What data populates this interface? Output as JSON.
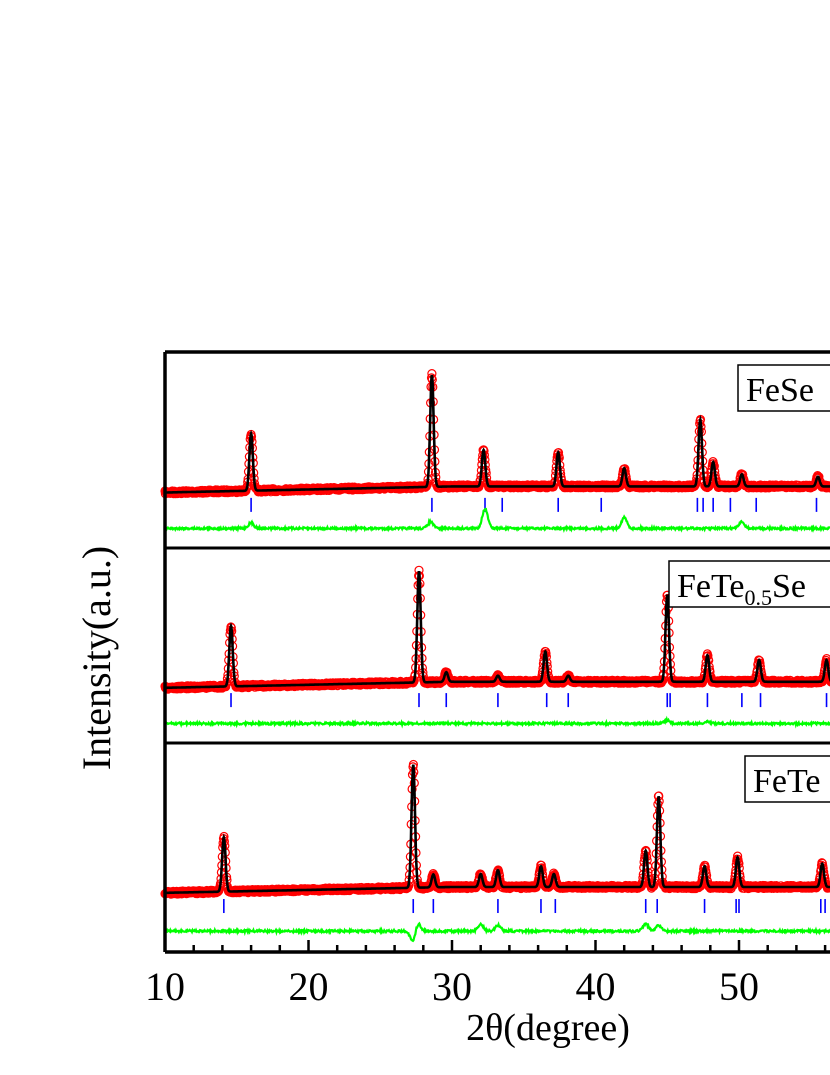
{
  "chart_data": {
    "type": "line",
    "xlabel": "2θ(degree)",
    "ylabel": "Intensity(a.u.)",
    "xlim": [
      10,
      57
    ],
    "x_ticks": [
      "10",
      "20",
      "30",
      "40",
      "50"
    ],
    "panels": [
      {
        "label": "FeSe",
        "label_sub": "",
        "label_suffix": "",
        "observed_color": "#ff0000",
        "calculated_color": "#000000",
        "difference_color": "#00ff00",
        "reflection_color": "#0000ff",
        "background_start": 0.02,
        "background_end": 0.22,
        "peaks": [
          {
            "x": 16.0,
            "h": 0.47
          },
          {
            "x": 28.6,
            "h": 0.92
          },
          {
            "x": 32.2,
            "h": 0.3
          },
          {
            "x": 37.4,
            "h": 0.28
          },
          {
            "x": 42.0,
            "h": 0.15
          },
          {
            "x": 47.3,
            "h": 0.55
          },
          {
            "x": 48.2,
            "h": 0.2
          },
          {
            "x": 50.2,
            "h": 0.1
          },
          {
            "x": 55.5,
            "h": 0.08
          }
        ],
        "reflections": [
          16.0,
          28.6,
          32.3,
          33.5,
          37.4,
          40.4,
          47.1,
          47.5,
          48.2,
          49.4,
          51.2,
          55.4
        ],
        "difference_peaks": [
          {
            "x": 16.0,
            "h": 0.05
          },
          {
            "x": 28.5,
            "h": 0.06
          },
          {
            "x": 32.3,
            "h": 0.18
          },
          {
            "x": 42.0,
            "h": 0.1
          },
          {
            "x": 50.2,
            "h": 0.06
          }
        ]
      },
      {
        "label": "FeTe",
        "label_sub": "0.5",
        "label_suffix": "Se",
        "observed_color": "#ff0000",
        "calculated_color": "#000000",
        "difference_color": "#00ff00",
        "reflection_color": "#0000ff",
        "background_start": 0.02,
        "background_end": 0.22,
        "peaks": [
          {
            "x": 14.6,
            "h": 0.5
          },
          {
            "x": 27.7,
            "h": 0.92
          },
          {
            "x": 29.6,
            "h": 0.08
          },
          {
            "x": 33.2,
            "h": 0.05
          },
          {
            "x": 36.5,
            "h": 0.25
          },
          {
            "x": 38.1,
            "h": 0.05
          },
          {
            "x": 45.0,
            "h": 0.72
          },
          {
            "x": 47.8,
            "h": 0.22
          },
          {
            "x": 51.4,
            "h": 0.18
          },
          {
            "x": 56.1,
            "h": 0.18
          }
        ],
        "reflections": [
          14.6,
          27.7,
          29.6,
          33.2,
          36.6,
          38.1,
          45.0,
          45.2,
          47.8,
          50.2,
          51.5,
          56.1
        ],
        "difference_peaks": [
          {
            "x": 45.0,
            "h": 0.03
          },
          {
            "x": 47.8,
            "h": 0.02
          }
        ]
      },
      {
        "label": "FeTe",
        "label_sub": "",
        "label_suffix": "",
        "observed_color": "#ff0000",
        "calculated_color": "#000000",
        "difference_color": "#00ff00",
        "reflection_color": "#0000ff",
        "background_start": 0.02,
        "background_end": 0.2,
        "peaks": [
          {
            "x": 14.1,
            "h": 0.42
          },
          {
            "x": 27.3,
            "h": 0.95
          },
          {
            "x": 28.7,
            "h": 0.1
          },
          {
            "x": 32.0,
            "h": 0.1
          },
          {
            "x": 33.2,
            "h": 0.13
          },
          {
            "x": 36.2,
            "h": 0.16
          },
          {
            "x": 37.1,
            "h": 0.1
          },
          {
            "x": 43.5,
            "h": 0.28
          },
          {
            "x": 44.4,
            "h": 0.7
          },
          {
            "x": 47.6,
            "h": 0.16
          },
          {
            "x": 49.9,
            "h": 0.23
          },
          {
            "x": 55.8,
            "h": 0.18
          }
        ],
        "reflections": [
          14.1,
          27.3,
          28.7,
          33.2,
          36.2,
          37.2,
          43.5,
          44.3,
          47.6,
          49.8,
          50.0,
          55.7,
          56.0
        ],
        "difference_peaks": [
          {
            "x": 27.3,
            "h": -0.1
          },
          {
            "x": 27.6,
            "h": 0.08
          },
          {
            "x": 32.0,
            "h": 0.06
          },
          {
            "x": 33.2,
            "h": 0.05
          },
          {
            "x": 43.5,
            "h": 0.06
          },
          {
            "x": 44.4,
            "h": 0.05
          }
        ]
      }
    ]
  }
}
